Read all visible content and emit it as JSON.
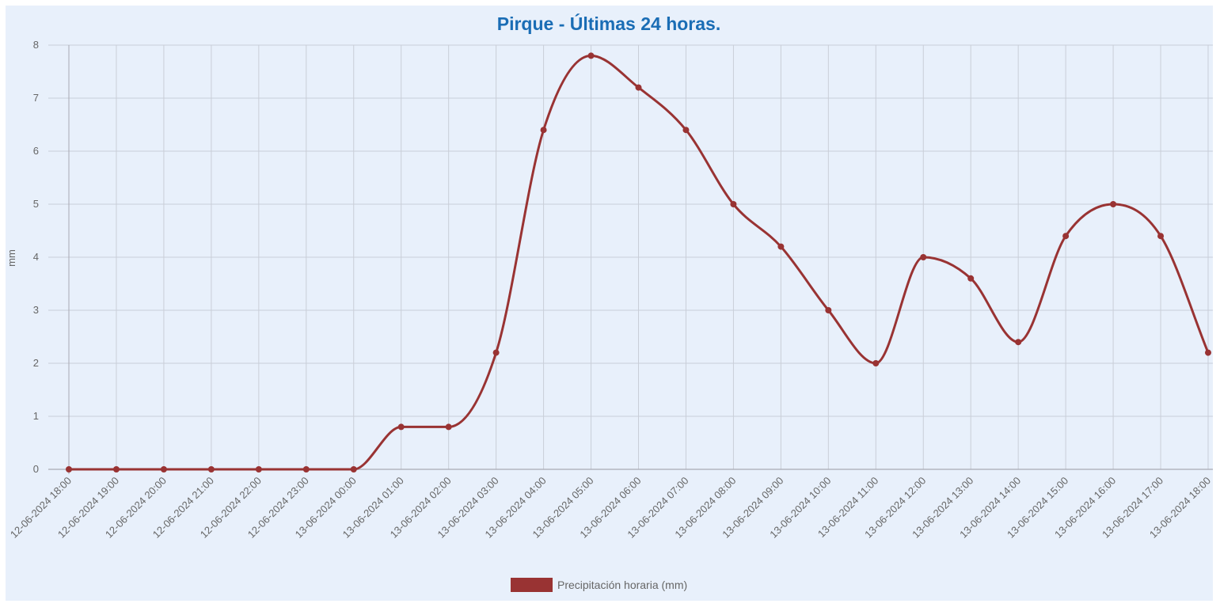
{
  "chart_data": {
    "type": "line",
    "title": "Pirque - Últimas 24 horas.",
    "ylabel": "mm",
    "xlabel": "",
    "ylim": [
      0,
      8
    ],
    "yticks": [
      0,
      1,
      2,
      3,
      4,
      5,
      6,
      7,
      8
    ],
    "grid": true,
    "legend_position": "bottom",
    "categories": [
      "12-06-2024 18:00",
      "12-06-2024 19:00",
      "12-06-2024 20:00",
      "12-06-2024 21:00",
      "12-06-2024 22:00",
      "12-06-2024 23:00",
      "13-06-2024 00:00",
      "13-06-2024 01:00",
      "13-06-2024 02:00",
      "13-06-2024 03:00",
      "13-06-2024 04:00",
      "13-06-2024 05:00",
      "13-06-2024 06:00",
      "13-06-2024 07:00",
      "13-06-2024 08:00",
      "13-06-2024 09:00",
      "13-06-2024 10:00",
      "13-06-2024 11:00",
      "13-06-2024 12:00",
      "13-06-2024 13:00",
      "13-06-2024 14:00",
      "13-06-2024 15:00",
      "13-06-2024 16:00",
      "13-06-2024 17:00",
      "13-06-2024 18:00"
    ],
    "series": [
      {
        "name": "Precipitación horaria (mm)",
        "color": "#993333",
        "values": [
          0,
          0,
          0,
          0,
          0,
          0,
          0,
          0.8,
          0.8,
          2.2,
          6.4,
          7.8,
          7.2,
          6.4,
          5.0,
          4.2,
          3.0,
          2.0,
          4.0,
          3.6,
          2.4,
          4.4,
          5.0,
          4.4,
          2.2
        ]
      }
    ],
    "colors": {
      "title": "#1a6db5",
      "background": "#e8f0fb",
      "grid": "#c9ced8",
      "axis": "#a9a9b3",
      "text": "#666666"
    }
  }
}
